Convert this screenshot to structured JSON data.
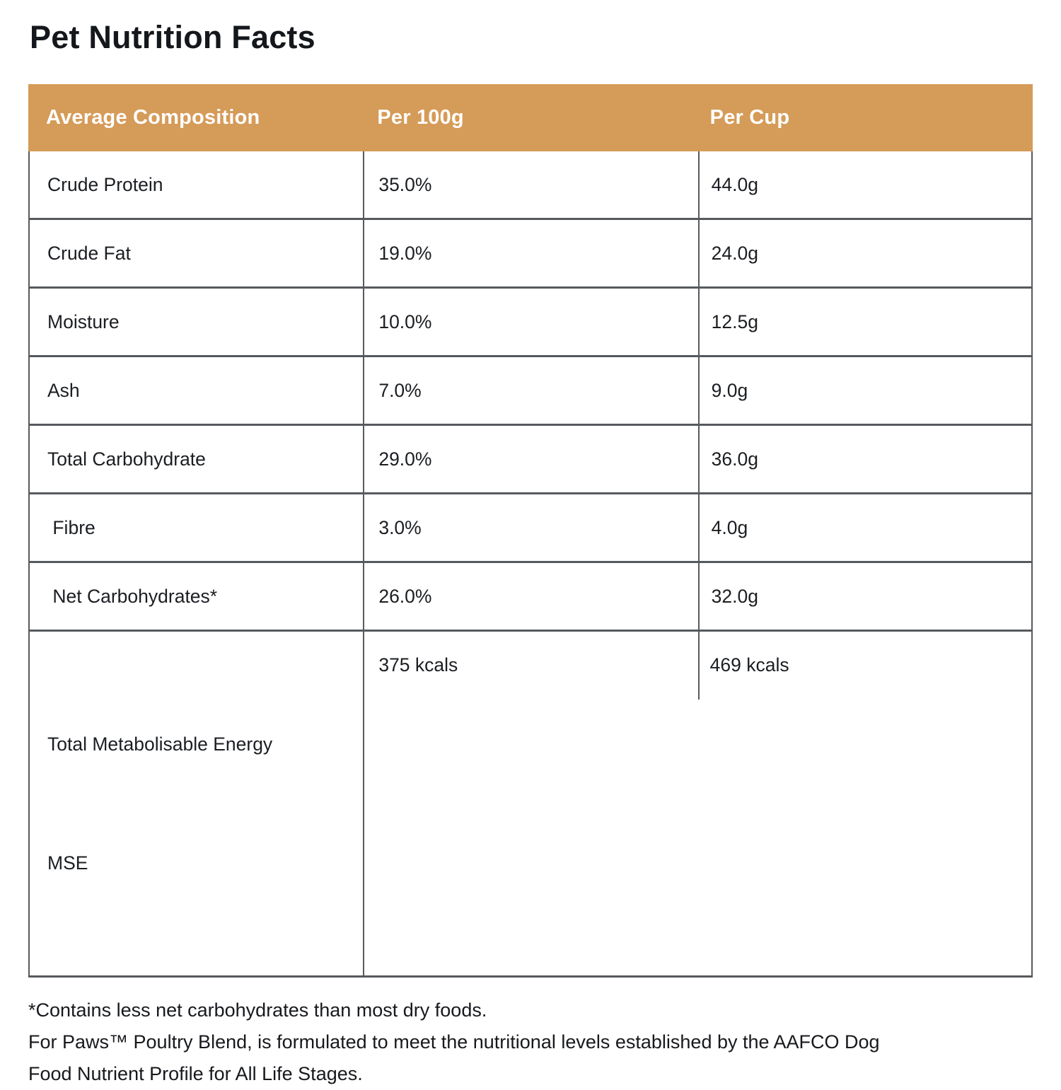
{
  "page": {
    "title": "Pet Nutrition Facts"
  },
  "colors": {
    "header_bg": "#D59B58",
    "header_text": "#FFFFFF",
    "line": "#56595D",
    "text": "#1B1E22"
  },
  "table": {
    "columns": [
      {
        "label": "Average Composition"
      },
      {
        "label": "Per 100g"
      },
      {
        "label": "Per Cup"
      }
    ],
    "rows": [
      {
        "label": "Crude Protein",
        "per_100g": "35.0%",
        "per_cup": "44.0g"
      },
      {
        "label": "Crude Fat",
        "per_100g": "19.0%",
        "per_cup": "24.0g"
      },
      {
        "label": "Moisture",
        "per_100g": "10.0%",
        "per_cup": "12.5g"
      },
      {
        "label": "Ash",
        "per_100g": "7.0%",
        "per_cup": "9.0g"
      },
      {
        "label": "Total Carbohydrate",
        "per_100g": "29.0%",
        "per_cup": "36.0g"
      },
      {
        "label": " Fibre",
        "per_100g": "3.0%",
        "per_cup": "4.0g"
      },
      {
        "label": " Net Carbohydrates*",
        "per_100g": "26.0%",
        "per_cup": "32.0g"
      },
      {
        "label": "Total Metabolisable Energy",
        "label_line2": "MSE",
        "per_100g": "375 kcals",
        "per_cup": "469 kcals"
      }
    ]
  },
  "notes": {
    "line1": "*Contains less net carbohydrates than most dry foods.",
    "line2": "For Paws™ Poultry Blend, is formulated to meet the nutritional levels established by the AAFCO Dog",
    "line3": "Food Nutrient Profile for All Life Stages."
  }
}
